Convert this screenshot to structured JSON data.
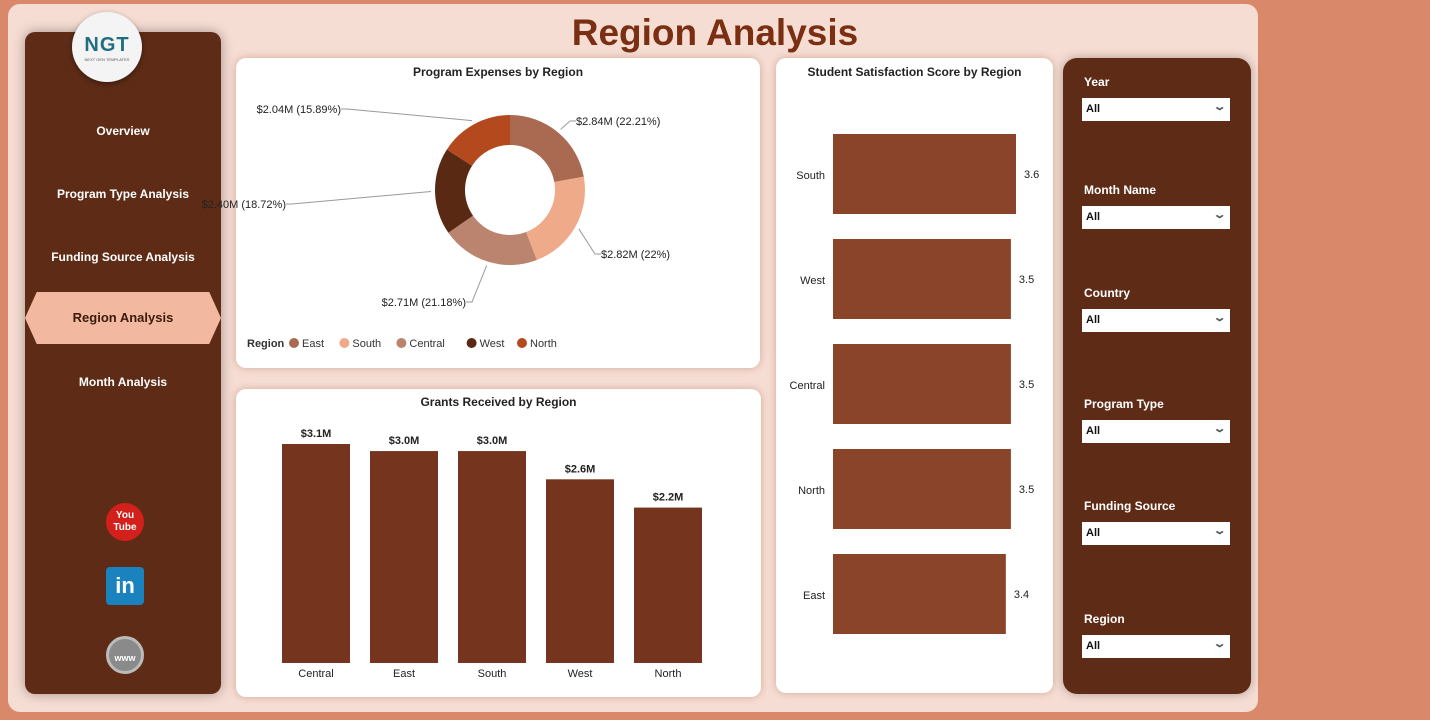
{
  "header": {
    "title": "Region Analysis"
  },
  "logo": {
    "text": "NGT",
    "subtitle": "NEXT GEN TEMPLATES"
  },
  "nav": {
    "items": [
      {
        "label": "Overview"
      },
      {
        "label": "Program Type Analysis"
      },
      {
        "label": "Funding Source Analysis"
      },
      {
        "label": "Region Analysis",
        "active": true
      },
      {
        "label": "Month Analysis"
      }
    ]
  },
  "social": {
    "youtube": "You Tube",
    "linkedin": "in",
    "web": "www"
  },
  "filters": [
    {
      "label": "Year",
      "value": "All"
    },
    {
      "label": "Month Name",
      "value": "All"
    },
    {
      "label": "Country",
      "value": "All"
    },
    {
      "label": "Program Type",
      "value": "All"
    },
    {
      "label": "Funding Source",
      "value": "All"
    },
    {
      "label": "Region",
      "value": "All"
    }
  ],
  "chart_data": [
    {
      "type": "pie",
      "title": "Program Expenses by Region",
      "legend_title": "Region",
      "legend_position": "bottom-left",
      "donut": true,
      "categories": [
        "East",
        "South",
        "Central",
        "West",
        "North"
      ],
      "values": [
        2.84,
        2.82,
        2.71,
        2.4,
        2.04
      ],
      "labels": [
        "$2.84M (22.21%)",
        "$2.82M (22%)",
        "$2.71M (21.18%)",
        "$2.40M (18.72%)",
        "$2.04M (15.89%)"
      ],
      "colors": [
        "#a96a51",
        "#efab89",
        "#ba846e",
        "#5a2914",
        "#b4491d"
      ]
    },
    {
      "type": "bar",
      "title": "Grants Received by Region",
      "categories": [
        "Central",
        "East",
        "South",
        "West",
        "North"
      ],
      "values": [
        3.1,
        3.0,
        3.0,
        2.6,
        2.2
      ],
      "data_labels": [
        "$3.1M",
        "$3.0M",
        "$3.0M",
        "$2.6M",
        "$2.2M"
      ],
      "unit": "$M",
      "ylim": [
        0,
        3.1
      ],
      "color": "#74341d"
    },
    {
      "type": "bar",
      "orientation": "horizontal",
      "title": "Student Satisfaction Score by Region",
      "categories": [
        "South",
        "West",
        "Central",
        "North",
        "East"
      ],
      "values": [
        3.6,
        3.5,
        3.5,
        3.5,
        3.4
      ],
      "data_labels": [
        "3.6",
        "3.5",
        "3.5",
        "3.5",
        "3.4"
      ],
      "xlim": [
        0,
        3.6
      ],
      "color": "#8a4429"
    }
  ]
}
